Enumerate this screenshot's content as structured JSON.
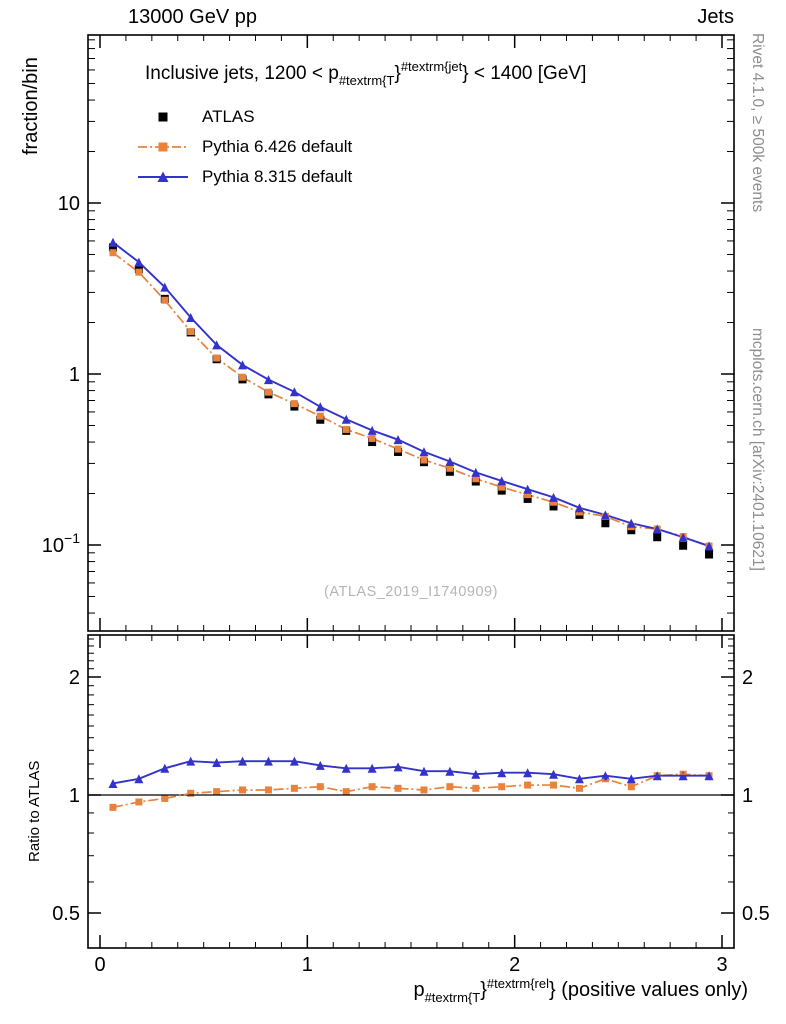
{
  "header": {
    "left": "13000 GeV pp",
    "right": "Jets"
  },
  "side": {
    "top_right": "Rivet 4.1.0, ≥ 500k events",
    "bottom_right": "mcplots.cern.ch [arXiv:2401.10621]"
  },
  "watermark": "(ATLAS_2019_I1740909)",
  "ylabel": "fraction/bin",
  "ratio_ylabel": "Ratio to ATLAS",
  "title_parts": [
    {
      "t": "Inclusive jets, 1200 < p",
      "s": "n"
    },
    {
      "t": "#textrm{T",
      "s": "sub"
    },
    {
      "t": "}",
      "s": "n"
    },
    {
      "t": "#textrm{jet",
      "s": "sup"
    },
    {
      "t": "} < 1400 [GeV]",
      "s": "n"
    }
  ],
  "xlabel_parts": [
    {
      "t": "p",
      "s": "n"
    },
    {
      "t": "#textrm{T",
      "s": "sub"
    },
    {
      "t": "}",
      "s": "n"
    },
    {
      "t": "#textrm{rel",
      "s": "sup"
    },
    {
      "t": "} (positive values only)",
      "s": "n"
    }
  ],
  "legend": [
    {
      "label": "ATLAS",
      "marker": "square",
      "line": "none",
      "color": "#000000"
    },
    {
      "label": "Pythia 6.426 default",
      "marker": "square",
      "line": "dashdot",
      "color": "#e8823c"
    },
    {
      "label": "Pythia 8.315 default",
      "marker": "triangle",
      "line": "solid",
      "color": "#3333cc"
    }
  ],
  "chart_data": {
    "type": "line",
    "title": "Inclusive jets, 1200 < pT^jet < 1400 [GeV]",
    "xlabel": "pT^rel (positive values only)",
    "ylabel": "fraction/bin",
    "ratio_label": "Ratio to ATLAS",
    "x_range": [
      -0.058,
      3.059
    ],
    "x_ticks": [
      {
        "v": 0,
        "label": "0"
      },
      {
        "v": 1,
        "label": "1"
      },
      {
        "v": 2,
        "label": "2"
      },
      {
        "v": 3,
        "label": "3"
      }
    ],
    "main": {
      "y_scale": "log",
      "y_range": [
        0.031,
        96
      ],
      "y_ticks": [
        {
          "v": 10,
          "label": "10"
        },
        {
          "v": 1,
          "label": "1"
        },
        {
          "v": 0.1,
          "base": "10",
          "exp": "−1"
        }
      ]
    },
    "ratio": {
      "y_scale": "log",
      "y_range": [
        0.41,
        2.56
      ],
      "y_ticks": [
        {
          "v": 2,
          "label": "2"
        },
        {
          "v": 1,
          "label": "1"
        },
        {
          "v": 0.5,
          "label": "0.5"
        }
      ],
      "reference_line": 1
    },
    "x": [
      0.0625,
      0.1875,
      0.3125,
      0.4375,
      0.5625,
      0.6875,
      0.8125,
      0.9375,
      1.0625,
      1.1875,
      1.3125,
      1.4375,
      1.5625,
      1.6875,
      1.8125,
      1.9375,
      2.0625,
      2.1875,
      2.3125,
      2.4375,
      2.5625,
      2.6875,
      2.8125,
      2.9375
    ],
    "series": [
      {
        "name": "ATLAS",
        "color": "#000000",
        "marker": "square",
        "line": "none",
        "values": [
          5.5,
          4.1,
          2.75,
          1.75,
          1.22,
          0.93,
          0.76,
          0.645,
          0.54,
          0.465,
          0.4,
          0.35,
          0.305,
          0.268,
          0.235,
          0.208,
          0.186,
          0.168,
          0.15,
          0.134,
          0.122,
          0.111,
          0.099,
          0.088
        ]
      },
      {
        "name": "Pythia 6.426 default",
        "color": "#e8823c",
        "marker": "square",
        "line": "dashdot",
        "values": [
          5.12,
          3.94,
          2.7,
          1.77,
          1.24,
          0.958,
          0.783,
          0.671,
          0.567,
          0.474,
          0.42,
          0.364,
          0.314,
          0.281,
          0.244,
          0.218,
          0.197,
          0.178,
          0.156,
          0.147,
          0.128,
          0.124,
          0.112,
          0.0986
        ],
        "ratio_to_atlas": [
          0.93,
          0.96,
          0.98,
          1.01,
          1.02,
          1.03,
          1.03,
          1.04,
          1.05,
          1.02,
          1.05,
          1.04,
          1.03,
          1.05,
          1.04,
          1.05,
          1.06,
          1.06,
          1.04,
          1.1,
          1.05,
          1.12,
          1.13,
          1.12
        ]
      },
      {
        "name": "Pythia 8.315 default",
        "color": "#3333cc",
        "marker": "triangle",
        "line": "solid",
        "values": [
          5.89,
          4.51,
          3.22,
          2.14,
          1.48,
          1.13,
          0.927,
          0.787,
          0.643,
          0.544,
          0.468,
          0.413,
          0.351,
          0.308,
          0.266,
          0.237,
          0.212,
          0.19,
          0.165,
          0.15,
          0.134,
          0.124,
          0.111,
          0.0986
        ],
        "ratio_to_atlas": [
          1.07,
          1.1,
          1.17,
          1.22,
          1.21,
          1.22,
          1.22,
          1.22,
          1.19,
          1.17,
          1.17,
          1.18,
          1.15,
          1.15,
          1.13,
          1.14,
          1.14,
          1.13,
          1.1,
          1.12,
          1.1,
          1.12,
          1.12,
          1.12
        ]
      }
    ],
    "legend_position": "top-left",
    "grid": false
  }
}
